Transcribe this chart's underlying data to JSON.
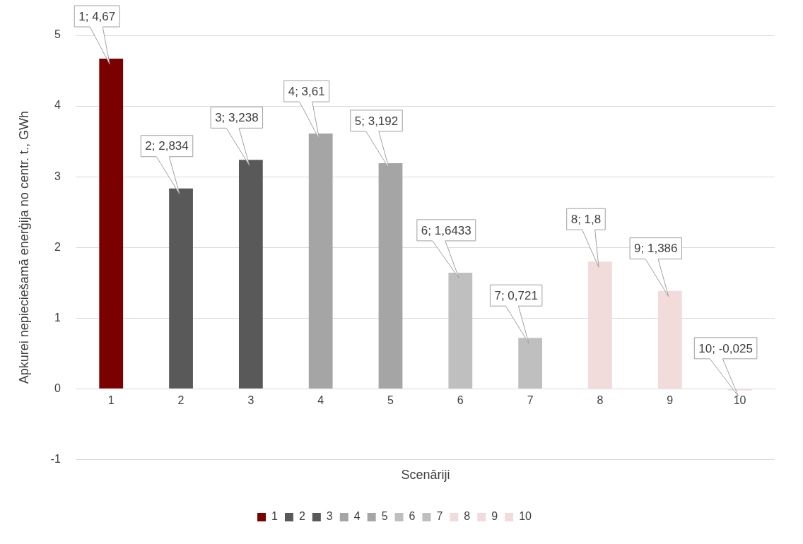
{
  "chart_data": {
    "type": "bar",
    "xlabel": "Scenāriji",
    "ylabel": "Apkurei nepieciešamā enerģija no centr. t., GWh",
    "categories": [
      "1",
      "2",
      "3",
      "4",
      "5",
      "6",
      "7",
      "8",
      "9",
      "10"
    ],
    "series": [
      {
        "name": "1",
        "color": "#7b0000",
        "values": [
          4.67,
          null,
          null,
          null,
          null,
          null,
          null,
          null,
          null,
          null
        ],
        "value_labels": [
          "1; 4,67",
          null,
          null,
          null,
          null,
          null,
          null,
          null,
          null,
          null
        ]
      },
      {
        "name": "2",
        "color": "#595959",
        "values": [
          null,
          2.834,
          null,
          null,
          null,
          null,
          null,
          null,
          null,
          null
        ],
        "value_labels": [
          null,
          "2; 2,834",
          null,
          null,
          null,
          null,
          null,
          null,
          null,
          null
        ]
      },
      {
        "name": "3",
        "color": "#595959",
        "values": [
          null,
          null,
          3.238,
          null,
          null,
          null,
          null,
          null,
          null,
          null
        ],
        "value_labels": [
          null,
          null,
          "3; 3,238",
          null,
          null,
          null,
          null,
          null,
          null,
          null
        ]
      },
      {
        "name": "4",
        "color": "#a5a5a5",
        "values": [
          null,
          null,
          null,
          3.61,
          null,
          null,
          null,
          null,
          null,
          null
        ],
        "value_labels": [
          null,
          null,
          null,
          "4; 3,61",
          null,
          null,
          null,
          null,
          null,
          null
        ]
      },
      {
        "name": "5",
        "color": "#a5a5a5",
        "values": [
          null,
          null,
          null,
          null,
          3.192,
          null,
          null,
          null,
          null,
          null
        ],
        "value_labels": [
          null,
          null,
          null,
          null,
          "5; 3,192",
          null,
          null,
          null,
          null,
          null
        ]
      },
      {
        "name": "6",
        "color": "#bfbfbf",
        "values": [
          null,
          null,
          null,
          null,
          null,
          1.6433,
          null,
          null,
          null,
          null
        ],
        "value_labels": [
          null,
          null,
          null,
          null,
          null,
          "6; 1,6433",
          null,
          null,
          null,
          null
        ]
      },
      {
        "name": "7",
        "color": "#bfbfbf",
        "values": [
          null,
          null,
          null,
          null,
          null,
          null,
          0.721,
          null,
          null,
          null
        ],
        "value_labels": [
          null,
          null,
          null,
          null,
          null,
          null,
          "7; 0,721",
          null,
          null,
          null
        ]
      },
      {
        "name": "8",
        "color": "#f2dcdb",
        "values": [
          null,
          null,
          null,
          null,
          null,
          null,
          null,
          1.8,
          null,
          null
        ],
        "value_labels": [
          null,
          null,
          null,
          null,
          null,
          null,
          null,
          "8; 1,8",
          null,
          null
        ]
      },
      {
        "name": "9",
        "color": "#f2dcdb",
        "values": [
          null,
          null,
          null,
          null,
          null,
          null,
          null,
          null,
          1.386,
          null
        ],
        "value_labels": [
          null,
          null,
          null,
          null,
          null,
          null,
          null,
          null,
          "9; 1,386",
          null
        ]
      },
      {
        "name": "10",
        "color": "#f2dcdb",
        "values": [
          null,
          null,
          null,
          null,
          null,
          null,
          null,
          null,
          null,
          -0.025
        ],
        "value_labels": [
          null,
          null,
          null,
          null,
          null,
          null,
          null,
          null,
          null,
          "10; -0,025"
        ]
      }
    ],
    "ylim": [
      -1,
      5
    ],
    "yticks": [
      -1,
      0,
      1,
      2,
      3,
      4,
      5
    ],
    "grid": "y",
    "legend": "bottom"
  }
}
